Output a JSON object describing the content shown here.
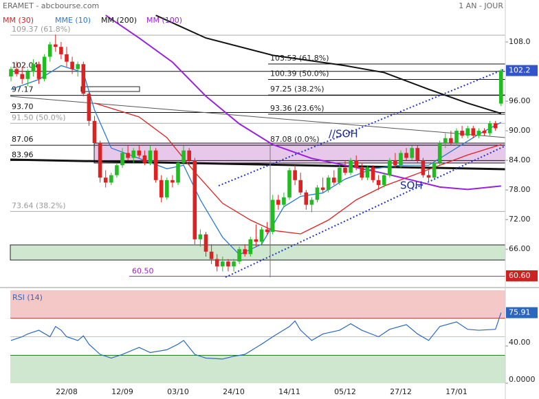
{
  "chart_data": [
    {
      "type": "candlestick",
      "title": "ERAMET - abcbourse.com",
      "period": "1 AN - JOUR",
      "categories": [
        null,
        null,
        null,
        null,
        null,
        null,
        null,
        null,
        null,
        null,
        "22/08",
        null,
        null,
        null,
        null,
        null,
        null,
        null,
        null,
        null,
        "12/09",
        null,
        null,
        null,
        null,
        null,
        null,
        null,
        null,
        null,
        "03/10",
        null,
        null,
        null,
        null,
        null,
        null,
        null,
        null,
        null,
        "24/10",
        null,
        null,
        null,
        null,
        null,
        null,
        null,
        null,
        null,
        "14/11",
        null,
        null,
        null,
        null,
        null,
        null,
        null,
        null,
        null,
        "05/12",
        null,
        null,
        null,
        null,
        null,
        null,
        null,
        null,
        null,
        "27/12",
        null,
        null,
        null,
        null,
        null,
        null,
        null,
        null,
        null,
        "17/01",
        null,
        null,
        null,
        null,
        null,
        null,
        null,
        null
      ],
      "open": [
        101,
        102.5,
        101.5,
        100.5,
        102,
        103.5,
        100.5,
        105,
        107.5,
        107,
        105.5,
        104,
        102.5,
        103.5,
        97.5,
        92,
        87.5,
        80.5,
        79.5,
        81,
        83,
        85.5,
        84.5,
        86,
        85,
        83.5,
        86,
        80,
        76.5,
        80,
        79.5,
        83.5,
        86,
        84,
        68,
        69,
        65.5,
        64,
        62.5,
        63.5,
        62.5,
        63.5,
        66,
        65,
        68,
        67.5,
        70,
        69.5,
        76,
        75,
        76.5,
        82,
        80,
        77.5,
        75,
        76,
        78.5,
        78,
        80.5,
        79.5,
        82.5,
        81.5,
        84,
        82.5,
        80.5,
        82.5,
        80,
        79,
        81,
        84,
        83,
        85.5,
        84.5,
        86.5,
        84,
        81,
        80.5,
        83.5,
        87.5,
        88.5,
        87.5,
        90,
        89,
        90.5,
        89,
        90,
        89.5,
        91.5,
        95.5
      ],
      "high": [
        103,
        104,
        103,
        102.5,
        104.5,
        104,
        105.5,
        108,
        109.5,
        108,
        107,
        105,
        104,
        104,
        98,
        93,
        88,
        82,
        81.5,
        83.5,
        86.5,
        87,
        86.5,
        87,
        86,
        87,
        86.5,
        81,
        80.5,
        81,
        84,
        87,
        86.5,
        84.5,
        70,
        69.5,
        67,
        65,
        64.5,
        64,
        64,
        66.5,
        67,
        68.5,
        71,
        70.5,
        71.5,
        77,
        77,
        77.5,
        82.5,
        83,
        81.5,
        78,
        76.5,
        79,
        80.5,
        81,
        82,
        83,
        84,
        84.5,
        85,
        83.5,
        83,
        83,
        81,
        81.5,
        84.5,
        85.5,
        86,
        86.5,
        87,
        87,
        84.5,
        82,
        84,
        88,
        89.5,
        90,
        90.5,
        91,
        91,
        91,
        90.5,
        90.5,
        92,
        92,
        102.5
      ],
      "low": [
        100,
        101,
        99.5,
        99,
        101,
        99.5,
        100,
        104,
        106,
        104.5,
        103,
        101.5,
        101,
        97,
        91,
        86.5,
        79.5,
        78.5,
        79,
        80.5,
        82.5,
        84,
        83.5,
        84.5,
        83,
        83,
        79.5,
        75.5,
        76,
        78.5,
        79,
        83,
        83,
        67,
        66.5,
        64.5,
        63,
        61.5,
        61.5,
        61.5,
        61.5,
        63,
        64.5,
        64.5,
        66.5,
        67,
        69,
        69,
        74,
        74.5,
        76,
        79,
        77,
        74,
        73.5,
        75.5,
        77.5,
        77.5,
        79,
        79,
        81,
        81,
        82,
        80,
        80,
        79.5,
        78,
        78.5,
        80.5,
        82.5,
        82.5,
        84,
        84,
        83.5,
        80.5,
        79.5,
        80,
        83,
        86.5,
        87,
        87,
        88.5,
        88.5,
        88.5,
        88.5,
        89,
        89,
        90,
        95
      ],
      "close": [
        102.5,
        101.5,
        100.5,
        102,
        103.5,
        100.5,
        105,
        107.5,
        107,
        105.5,
        104,
        102.5,
        103.5,
        97.5,
        92,
        87.5,
        80.5,
        79.5,
        81,
        83,
        85.5,
        84.5,
        86,
        85,
        83.5,
        86,
        80,
        76.5,
        80,
        79.5,
        83.5,
        86,
        84,
        68,
        69,
        65.5,
        64,
        62.5,
        63.5,
        62.5,
        63.5,
        66,
        65,
        68,
        67.5,
        70,
        69.5,
        76,
        75,
        76.5,
        82,
        80,
        77.5,
        75,
        76,
        78.5,
        78,
        80.5,
        79.5,
        82.5,
        81.5,
        84,
        82.5,
        80.5,
        82.5,
        80,
        79,
        81,
        84,
        83,
        85.5,
        84.5,
        86.5,
        84,
        81,
        80.5,
        83.5,
        87.5,
        88.5,
        87.5,
        90,
        89,
        90.5,
        89,
        90,
        89.5,
        91.5,
        90.5,
        102.2
      ],
      "up_color": "#22bb22",
      "down_color": "#dd2222",
      "ylim": [
        58.5,
        116.5
      ],
      "yticks": [
        {
          "value": 108,
          "label": "108.0"
        },
        {
          "value": 96,
          "label": "96.00"
        },
        {
          "value": 90,
          "label": "90.00"
        },
        {
          "value": 84,
          "label": "84.00"
        },
        {
          "value": 78,
          "label": "78.00"
        },
        {
          "value": 72,
          "label": "72.00"
        },
        {
          "value": 66,
          "label": "66.00"
        }
      ],
      "series": [
        {
          "name": "MM (30)",
          "color": "#e02020",
          "x": [
            15,
            23,
            28,
            33,
            38,
            43,
            47,
            52,
            57,
            62,
            67,
            72,
            77,
            82,
            88
          ],
          "values": [
            95.6,
            92.8,
            88.6,
            81.6,
            75.3,
            71.9,
            69.8,
            69.1,
            71.9,
            76,
            78.8,
            80.9,
            83,
            85.1,
            87.2
          ]
        },
        {
          "name": "MME (10)",
          "color": "#2a78d0",
          "x": [
            0,
            5,
            9,
            13,
            15,
            18,
            23,
            28,
            31,
            34,
            38,
            41,
            45,
            49,
            52,
            56,
            60,
            65,
            70,
            75,
            80,
            84,
            88
          ],
          "values": [
            98.4,
            100.4,
            103.2,
            101.8,
            94.2,
            86.5,
            84.4,
            82.3,
            83,
            76,
            68.4,
            64.9,
            67,
            74.6,
            76.7,
            77.4,
            80.2,
            82.3,
            83,
            83,
            86.5,
            89.3,
            91.7
          ]
        },
        {
          "name": "MM (200)",
          "color": "#111111",
          "x": [
            26,
            35,
            47,
            60,
            67,
            75,
            82,
            88
          ],
          "values": [
            113.4,
            108.8,
            105.3,
            103.2,
            101.8,
            98.4,
            95.6,
            93.5
          ]
        },
        {
          "name": "MM (100)",
          "color": "#9a20e0",
          "x": [
            17,
            23,
            29,
            35,
            41,
            47,
            54,
            60,
            66,
            72,
            77,
            82,
            88
          ],
          "values": [
            113.4,
            108.8,
            103.9,
            97,
            91.4,
            87.2,
            84.4,
            83,
            81.6,
            80,
            78.6,
            78.1,
            78.8
          ]
        }
      ],
      "left_levels": [
        {
          "value": 109.37,
          "label": "109.37  (61.8%)",
          "color": "#aaaaaa"
        },
        {
          "value": 102.04,
          "label": "102.04",
          "color": "#111111"
        },
        {
          "value": 97.17,
          "label": "97.17",
          "color": "#111111"
        },
        {
          "value": 93.7,
          "label": "93.70",
          "color": "#111111"
        },
        {
          "value": 91.5,
          "label": "91.50  (50.0%)",
          "color": "#aaaaaa"
        },
        {
          "value": 87.06,
          "label": "87.06",
          "color": "#111111"
        },
        {
          "value": 83.96,
          "label": "83.96",
          "color": "#111111"
        },
        {
          "value": 73.64,
          "label": "73.64  (38.2%)",
          "color": "#aaaaaa"
        }
      ],
      "right_levels": [
        {
          "value": 103.53,
          "label": "103.53  (61.8%)",
          "color": "#111111"
        },
        {
          "value": 100.39,
          "label": "100.39  (50.0%)",
          "color": "#111111"
        },
        {
          "value": 97.25,
          "label": "97.25  (38.2%)",
          "color": "#111111"
        },
        {
          "value": 93.36,
          "label": "93.36  (23.6%)",
          "color": "#111111"
        },
        {
          "value": 87.08,
          "label": "87.08  (0.0%)",
          "color": "#111111"
        }
      ],
      "low_level": {
        "value": 60.5,
        "label": "60.50",
        "color": "#a020c0"
      },
      "last_price": 102.2,
      "low_price": {
        "value": 60.6,
        "label": "60.60"
      },
      "annotations": [
        "//SOH",
        "SOH"
      ]
    },
    {
      "type": "line",
      "title": "RSI (14)",
      "color": "#2a68c0",
      "x": [
        0,
        2,
        3,
        5,
        7,
        8,
        9,
        10,
        12,
        13,
        14,
        16,
        18,
        20,
        23,
        25,
        28,
        30,
        31,
        33,
        35,
        38,
        40,
        42,
        45,
        47,
        50,
        51,
        52,
        54,
        56,
        59,
        61,
        63,
        66,
        68,
        71,
        73,
        75,
        77,
        80,
        82,
        84,
        87,
        88
      ],
      "values": [
        46,
        50,
        53,
        57,
        50,
        61,
        57,
        50,
        46,
        51,
        42,
        31,
        27,
        31,
        38.5,
        33,
        36,
        42,
        46,
        31,
        27,
        26,
        29,
        31,
        42,
        50,
        61,
        67,
        57,
        46,
        53,
        57,
        64,
        57,
        50,
        58,
        63,
        53,
        46,
        61,
        66,
        58,
        57,
        58,
        75.91
      ],
      "ylim": [
        0,
        100
      ],
      "yticks": [
        {
          "value": 40,
          "label": "40.00"
        },
        {
          "value": 0,
          "label": "0.0000"
        }
      ],
      "overbought": 70,
      "oversold": 30,
      "midline": 50,
      "last_value": 75.91
    }
  ]
}
